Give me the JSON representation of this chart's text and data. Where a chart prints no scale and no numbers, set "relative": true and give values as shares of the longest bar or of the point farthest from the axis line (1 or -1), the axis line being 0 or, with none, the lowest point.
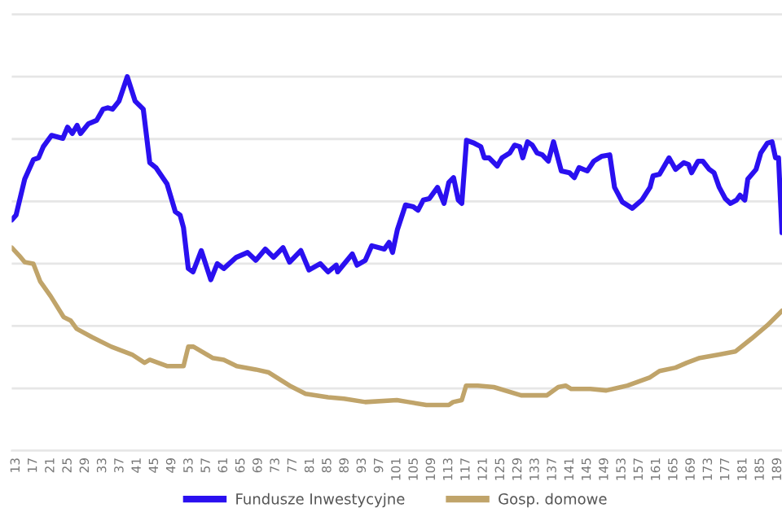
{
  "chart_data": {
    "type": "line",
    "relative": true,
    "grid": "y",
    "legend": "bottom",
    "xlim": [
      12,
      190
    ],
    "xticks": [
      13,
      17,
      21,
      25,
      29,
      33,
      37,
      41,
      45,
      49,
      53,
      57,
      61,
      65,
      69,
      73,
      77,
      81,
      85,
      89,
      93,
      97,
      101,
      105,
      109,
      113,
      117,
      121,
      125,
      129,
      133,
      137,
      141,
      145,
      149,
      153,
      157,
      161,
      165,
      169,
      173,
      177,
      181,
      185,
      189
    ],
    "series": [
      {
        "name": "Fundusze Inwestycyjne",
        "color": "#2a10f0",
        "x": [
          12,
          13,
          15,
          17,
          18.2,
          19.3,
          21.2,
          23.8,
          24.9,
          26,
          27.1,
          27.9,
          29.7,
          31.6,
          33.1,
          34.2,
          35.3,
          36.8,
          38.7,
          40.5,
          42.4,
          43.9,
          45.3,
          47.9,
          49.8,
          50.9,
          51.7,
          52.8,
          53.9,
          55.8,
          58,
          59.5,
          61,
          63.9,
          66.5,
          68.4,
          70.6,
          72.5,
          74.7,
          76.2,
          78.8,
          80.7,
          83.3,
          85.1,
          87,
          87.3,
          90.7,
          91.8,
          93.7,
          95.2,
          98.1,
          99.2,
          100,
          101.1,
          103,
          104.8,
          105.9,
          107.1,
          108.5,
          110.4,
          111.9,
          113,
          114.1,
          115.2,
          116,
          117.1,
          118.9,
          120.4,
          121.2,
          122.3,
          124.2,
          125.3,
          127.1,
          128.2,
          129.4,
          130.1,
          131.2,
          132.3,
          133.4,
          134.6,
          136,
          137.2,
          139,
          140.9,
          142,
          143.1,
          145,
          146.5,
          148.3,
          150.2,
          151.3,
          153.1,
          155.4,
          157.6,
          159.5,
          160.2,
          161.7,
          163.9,
          165.4,
          167.3,
          168.4,
          169.1,
          170.6,
          171.7,
          173.2,
          174.3,
          175.5,
          176.9,
          178.1,
          179.5,
          180.3,
          181.4,
          182.1,
          184,
          185.1,
          186.6,
          187.7,
          188.5,
          189.2,
          190
        ],
        "values": [
          0.617,
          0.63,
          0.726,
          0.778,
          0.783,
          0.813,
          0.843,
          0.835,
          0.865,
          0.848,
          0.87,
          0.848,
          0.874,
          0.883,
          0.913,
          0.917,
          0.913,
          0.935,
          1.0,
          0.935,
          0.913,
          0.77,
          0.757,
          0.713,
          0.639,
          0.63,
          0.596,
          0.487,
          0.478,
          0.535,
          0.457,
          0.5,
          0.487,
          0.517,
          0.53,
          0.509,
          0.539,
          0.517,
          0.543,
          0.504,
          0.535,
          0.483,
          0.5,
          0.478,
          0.496,
          0.478,
          0.526,
          0.496,
          0.509,
          0.548,
          0.539,
          0.557,
          0.53,
          0.59,
          0.657,
          0.652,
          0.643,
          0.67,
          0.674,
          0.704,
          0.661,
          0.717,
          0.73,
          0.67,
          0.661,
          0.83,
          0.822,
          0.813,
          0.783,
          0.783,
          0.761,
          0.783,
          0.796,
          0.817,
          0.813,
          0.783,
          0.826,
          0.817,
          0.796,
          0.791,
          0.774,
          0.826,
          0.748,
          0.743,
          0.73,
          0.757,
          0.748,
          0.774,
          0.787,
          0.791,
          0.704,
          0.665,
          0.648,
          0.67,
          0.704,
          0.735,
          0.739,
          0.783,
          0.752,
          0.77,
          0.765,
          0.743,
          0.774,
          0.774,
          0.752,
          0.743,
          0.704,
          0.674,
          0.661,
          0.67,
          0.683,
          0.67,
          0.726,
          0.752,
          0.796,
          0.822,
          0.826,
          0.783,
          0.783,
          0.583
        ]
      },
      {
        "name": "Gosp. domowe",
        "color": "#c0a46a",
        "x": [
          12,
          13.7,
          15,
          17,
          18.6,
          21,
          24,
          25.6,
          27,
          30.5,
          35,
          39.8,
          42.7,
          43.9,
          48,
          51.7,
          52.8,
          54,
          58.4,
          61,
          64,
          68.4,
          71.4,
          76.2,
          79.9,
          85.1,
          88.8,
          93.7,
          101,
          103.7,
          107.8,
          113,
          114,
          116,
          117,
          119.7,
          123.4,
          129.7,
          135.7,
          138.3,
          140,
          141.3,
          145.7,
          149.4,
          154.3,
          159.5,
          161.7,
          165.4,
          168,
          171,
          175.5,
          179.2,
          183,
          186.6,
          190
        ],
        "values": [
          0.543,
          0.522,
          0.504,
          0.5,
          0.452,
          0.413,
          0.357,
          0.348,
          0.326,
          0.304,
          0.278,
          0.257,
          0.235,
          0.243,
          0.226,
          0.226,
          0.278,
          0.278,
          0.248,
          0.243,
          0.226,
          0.217,
          0.209,
          0.174,
          0.152,
          0.143,
          0.139,
          0.13,
          0.135,
          0.13,
          0.122,
          0.122,
          0.13,
          0.135,
          0.174,
          0.174,
          0.17,
          0.148,
          0.148,
          0.17,
          0.174,
          0.165,
          0.165,
          0.161,
          0.174,
          0.196,
          0.213,
          0.222,
          0.235,
          0.248,
          0.257,
          0.265,
          0.3,
          0.335,
          0.374
        ]
      }
    ]
  }
}
